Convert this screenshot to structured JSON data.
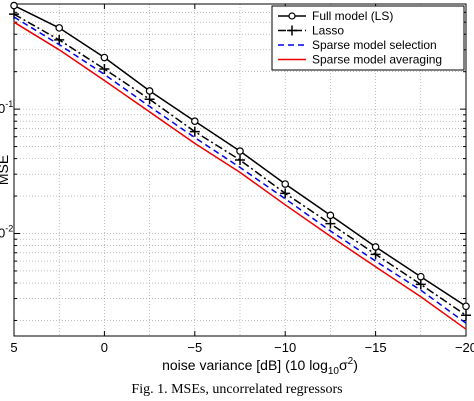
{
  "caption": "Fig. 1.  MSEs, uncorrelated regressors",
  "chart_data": {
    "type": "line",
    "xlabel": "noise variance [dB] (10 log",
    "xlabel_sub": "10",
    "xlabel_tail": "σ",
    "xlabel_sup": "2",
    "xlabel_end": ")",
    "ylabel": "MSE",
    "x_reversed": true,
    "xlim": [
      5,
      -20
    ],
    "ylim": [
      0.0015,
      0.7
    ],
    "y_scale": "log",
    "grid": true,
    "legend_position": "top-right",
    "x_ticks": [
      5,
      0,
      -5,
      -10,
      -15,
      -20
    ],
    "x_tick_labels": [
      "5",
      "0",
      "−5",
      "−10",
      "−15",
      "−20"
    ],
    "y_ticks": [
      0.1,
      0.01
    ],
    "series": [
      {
        "name": "Full model (LS)",
        "color": "#000000",
        "dash": "solid",
        "marker": "circle",
        "x": [
          5,
          2.5,
          0,
          -2.5,
          -5,
          -7.5,
          -10,
          -12.5,
          -15,
          -17.5,
          -20
        ],
        "y": [
          0.68,
          0.45,
          0.26,
          0.14,
          0.08,
          0.046,
          0.025,
          0.014,
          0.0078,
          0.0045,
          0.0026
        ]
      },
      {
        "name": "Lasso",
        "color": "#000000",
        "dash": "dashdot",
        "marker": "plus",
        "x": [
          5,
          2.5,
          0,
          -2.5,
          -5,
          -7.5,
          -10,
          -12.5,
          -15,
          -17.5,
          -20
        ],
        "y": [
          0.58,
          0.36,
          0.21,
          0.12,
          0.066,
          0.039,
          0.021,
          0.012,
          0.0068,
          0.0039,
          0.0022
        ]
      },
      {
        "name": "Sparse model selection",
        "color": "#0000ee",
        "dash": "dashed",
        "marker": "none",
        "x": [
          5,
          2.5,
          0,
          -2.5,
          -5,
          -7.5,
          -10,
          -12.5,
          -15,
          -17.5,
          -20
        ],
        "y": [
          0.55,
          0.33,
          0.19,
          0.105,
          0.059,
          0.034,
          0.019,
          0.0105,
          0.006,
          0.0035,
          0.0019
        ]
      },
      {
        "name": "Sparse model averaging",
        "color": "#ee0000",
        "dash": "solid",
        "marker": "none",
        "x": [
          5,
          2.5,
          0,
          -2.5,
          -5,
          -7.5,
          -10,
          -12.5,
          -15,
          -17.5,
          -20
        ],
        "y": [
          0.5,
          0.3,
          0.17,
          0.095,
          0.053,
          0.031,
          0.017,
          0.0095,
          0.0054,
          0.0031,
          0.0017
        ]
      }
    ]
  }
}
